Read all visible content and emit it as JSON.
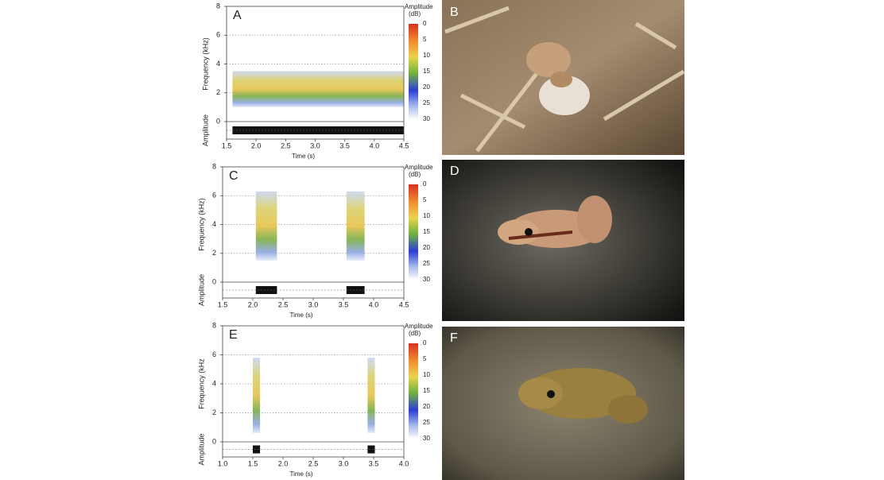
{
  "chart_data": [
    {
      "type": "spectrogram",
      "panel": "A",
      "ylabel": "Frequency (kHz)",
      "amplitude_label": "Amplitude",
      "xlabel": "Time (s)",
      "xlim": [
        1.5,
        4.5
      ],
      "xticks": [
        1.5,
        {
          "value": 2,
          "label": "2.0"
        },
        2.5,
        {
          "value": 3,
          "label": "3.0"
        },
        3.5,
        {
          "value": 4,
          "label": "4.0"
        },
        4.5
      ],
      "ylim": [
        0,
        8
      ],
      "yticks": [
        0,
        2,
        4,
        6,
        8
      ],
      "calls": [
        {
          "start": 1.6,
          "end": 4.5,
          "low": 1,
          "high": 3.5
        }
      ],
      "colorbar": {
        "label": "Amplitude",
        "unit": "(dB)",
        "ticks": [
          0,
          5,
          10,
          15,
          20,
          25,
          30
        ]
      }
    },
    {
      "type": "spectrogram",
      "panel": "C",
      "ylabel": "Frequency (kHz)",
      "amplitude_label": "Amplitude",
      "xlabel": "Time (s)",
      "xlim": [
        1.5,
        4.5
      ],
      "xticks": [
        1.5,
        {
          "value": 2,
          "label": "2.0"
        },
        2.5,
        {
          "value": 3,
          "label": "3.0"
        },
        3.5,
        {
          "value": 4,
          "label": "4.0"
        },
        4.5
      ],
      "ylim": [
        0,
        8
      ],
      "yticks": [
        0,
        2,
        4,
        6,
        8
      ],
      "calls": [
        {
          "start": 2.05,
          "end": 2.4,
          "low": 1.5,
          "high": 6.3
        },
        {
          "start": 3.55,
          "end": 3.85,
          "low": 1.5,
          "high": 6.3
        }
      ],
      "colorbar": {
        "label": "Amplitude",
        "unit": "(dB)",
        "ticks": [
          0,
          5,
          10,
          15,
          20,
          25,
          30
        ]
      }
    },
    {
      "type": "spectrogram",
      "panel": "E",
      "ylabel": "Frequency (kHz",
      "amplitude_label": "Amplitude",
      "xlabel": "Time (s)",
      "xlim": [
        1,
        4
      ],
      "xticks": [
        {
          "value": 1,
          "label": "1.0"
        },
        1.5,
        {
          "value": 2,
          "label": "2.0"
        },
        2.5,
        {
          "value": 3,
          "label": "3.0"
        },
        3.5,
        {
          "value": 4,
          "label": "4.0"
        }
      ],
      "ylim": [
        0,
        8
      ],
      "yticks": [
        0,
        2,
        4,
        6,
        8
      ],
      "calls": [
        {
          "start": 1.5,
          "end": 1.62,
          "low": 0.6,
          "high": 5.8
        },
        {
          "start": 3.4,
          "end": 3.52,
          "low": 0.6,
          "high": 5.8
        }
      ],
      "colorbar": {
        "label": "Amplitude",
        "unit": "(dB)",
        "ticks": [
          0,
          5,
          10,
          15,
          20,
          25,
          30
        ]
      }
    }
  ],
  "photos": [
    {
      "label": "B"
    },
    {
      "label": "D"
    },
    {
      "label": "F"
    }
  ]
}
